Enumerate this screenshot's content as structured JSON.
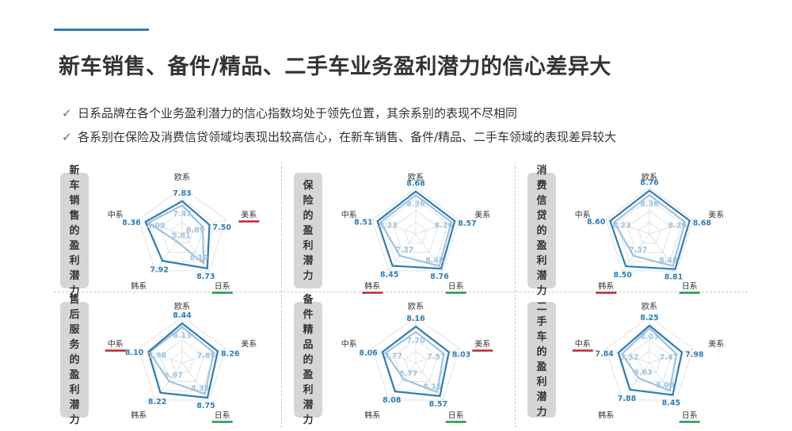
{
  "title": "新车销售、备件/精品、二手车业务盈利潜力的信心差异大",
  "bullets": [
    "日系品牌在各个业务盈利潜力的信心指数均处于领先位置，其余系别的表现不尽相同",
    "各系别在保险及消费信贷领域均表现出较高信心，在新车销售、备件/精品、二手车领域的表现差异较大"
  ],
  "check_icon": "check-icon",
  "colors": {
    "outer": "#2e7eb6",
    "inner": "#9fc3e0",
    "high": "#1e9a4b",
    "low": "#c0262d",
    "label_bg": "#d6d6d6"
  },
  "chart_data": [
    {
      "type": "radar",
      "title": "新车销售的盈利潜力",
      "axes": [
        "欧系",
        "美系",
        "日系",
        "韩系",
        "中系"
      ],
      "series": [
        {
          "values": [
            7.83,
            7.5,
            8.73,
            7.92,
            8.36
          ]
        },
        {
          "values": [
            7.47,
            6.89,
            8.19,
            5.81,
            8.09
          ]
        }
      ],
      "highlight_high": "日系",
      "highlight_low": "美系"
    },
    {
      "type": "radar",
      "title": "保险的盈利潜力",
      "axes": [
        "欧系",
        "美系",
        "日系",
        "韩系",
        "中系"
      ],
      "series": [
        {
          "values": [
            8.68,
            8.57,
            8.76,
            8.45,
            8.51
          ]
        },
        {
          "values": [
            8.36,
            8.26,
            8.48,
            7.37,
            8.23
          ]
        }
      ],
      "highlight_high": "日系",
      "highlight_low": "韩系"
    },
    {
      "type": "radar",
      "title": "消费信贷的盈利潜力",
      "axes": [
        "欧系",
        "美系",
        "日系",
        "韩系",
        "中系"
      ],
      "series": [
        {
          "values": [
            8.76,
            8.68,
            8.81,
            8.5,
            8.6
          ]
        },
        {
          "values": [
            8.36,
            8.26,
            8.48,
            7.37,
            8.23
          ]
        }
      ],
      "highlight_high": "日系",
      "highlight_low": "韩系"
    },
    {
      "type": "radar",
      "title": "售后服务的盈利潜力",
      "axes": [
        "欧系",
        "美系",
        "日系",
        "韩系",
        "中系"
      ],
      "series": [
        {
          "values": [
            8.44,
            8.26,
            8.75,
            8.22,
            8.1
          ]
        },
        {
          "values": [
            8.13,
            7.89,
            8.35,
            6.97,
            7.98
          ]
        }
      ],
      "highlight_high": "日系",
      "highlight_low": "中系"
    },
    {
      "type": "radar",
      "title": "备件精品的盈利潜力",
      "axes": [
        "欧系",
        "美系",
        "日系",
        "韩系",
        "中系"
      ],
      "series": [
        {
          "values": [
            8.16,
            8.03,
            8.57,
            8.08,
            8.06
          ]
        },
        {
          "values": [
            7.7,
            7.57,
            8.15,
            6.77,
            7.77
          ]
        }
      ],
      "highlight_high": "日系",
      "highlight_low": "美系"
    },
    {
      "type": "radar",
      "title": "二手车的盈利潜力",
      "axes": [
        "欧系",
        "美系",
        "日系",
        "韩系",
        "中系"
      ],
      "series": [
        {
          "values": [
            8.25,
            7.98,
            8.45,
            7.88,
            7.84
          ]
        },
        {
          "values": [
            8.03,
            7.47,
            8.0,
            6.63,
            7.52
          ]
        }
      ],
      "highlight_high": "日系",
      "highlight_low": "中系"
    }
  ]
}
